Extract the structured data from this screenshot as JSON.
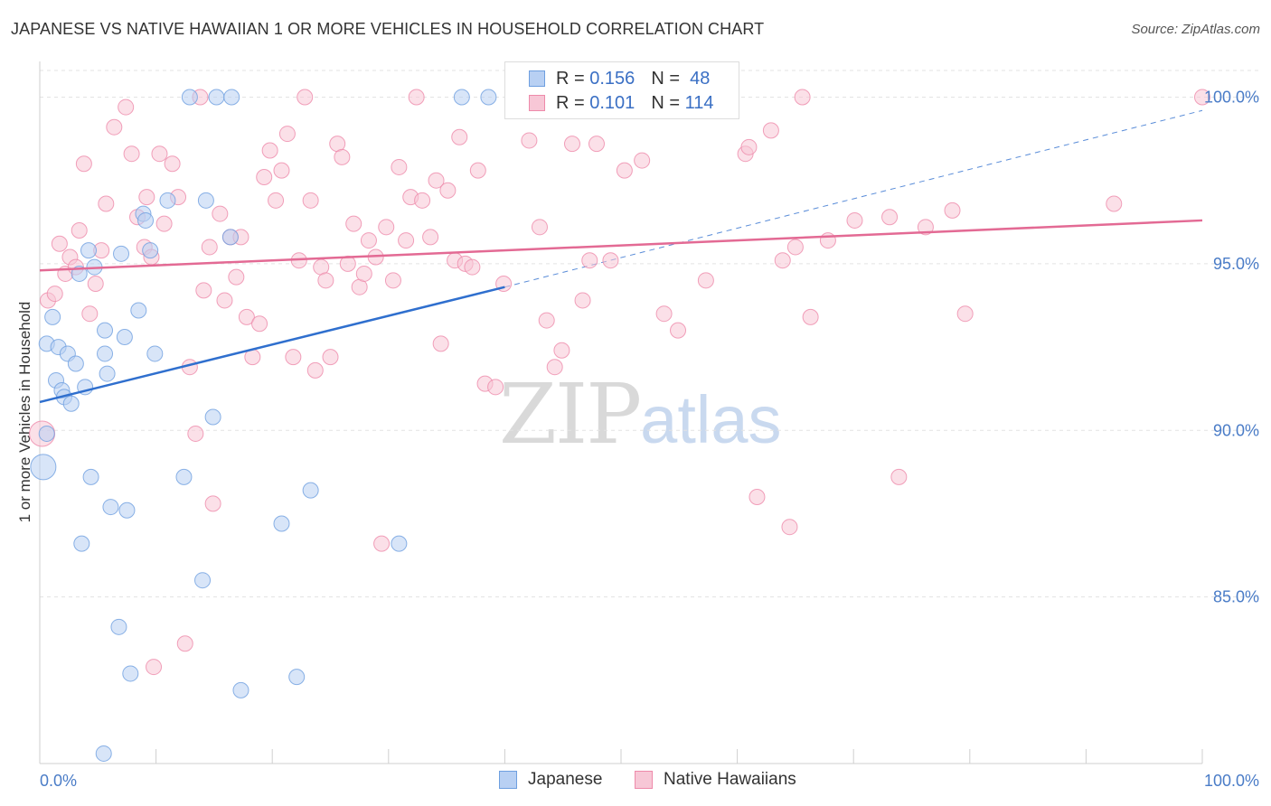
{
  "title": "JAPANESE VS NATIVE HAWAIIAN 1 OR MORE VEHICLES IN HOUSEHOLD CORRELATION CHART",
  "source": "Source: ZipAtlas.com",
  "watermark": {
    "zip": "ZIP",
    "atlas": "atlas"
  },
  "colors": {
    "japanese": "#6e9fe0",
    "japanese_fill": "#b8d0f3",
    "hawaiian": "#ee8aaa",
    "hawaiian_fill": "#f7c7d6",
    "tick": "#4a7cc7",
    "japanese_line": "#2f6fce",
    "hawaiian_line": "#e36a94"
  },
  "legend": {
    "japanese": {
      "r_label": "R =",
      "r_value": "0.156",
      "n_label": "N =",
      "n_value": "48"
    },
    "hawaiian": {
      "r_label": "R =",
      "r_value": "0.101",
      "n_label": "N =",
      "n_value": "114"
    }
  },
  "chart_data": {
    "type": "scatter",
    "title": "JAPANESE VS NATIVE HAWAIIAN 1 OR MORE VEHICLES IN HOUSEHOLD CORRELATION CHART",
    "xlabel": "",
    "ylabel": "1 or more Vehicles in Household",
    "xlim": [
      0,
      100
    ],
    "ylim": [
      80,
      100.8
    ],
    "y_ticks": [
      {
        "value": 85,
        "label": "85.0%"
      },
      {
        "value": 90,
        "label": "90.0%"
      },
      {
        "value": 95,
        "label": "95.0%"
      },
      {
        "value": 100,
        "label": "100.0%"
      }
    ],
    "x_ticks": [
      {
        "value": 0,
        "label": "0.0%"
      },
      {
        "value": 100,
        "label": "100.0%"
      }
    ],
    "x_minor_ticks": [
      0,
      10,
      20,
      30,
      40,
      50,
      60,
      70,
      80,
      90,
      100
    ],
    "series": [
      {
        "name": "Japanese",
        "trend": {
          "x0": 0,
          "y0": 90.85,
          "x1": 40,
          "y1": 94.3,
          "dash_x1": 100,
          "dash_y1": 99.6
        },
        "points": [
          [
            0.3,
            88.9,
            2
          ],
          [
            0.6,
            89.9,
            1
          ],
          [
            0.6,
            92.6,
            1
          ],
          [
            1.1,
            93.4,
            1
          ],
          [
            1.4,
            91.5,
            1
          ],
          [
            1.6,
            92.5,
            1
          ],
          [
            1.9,
            91.2,
            1
          ],
          [
            2.1,
            91.0,
            1
          ],
          [
            2.4,
            92.3,
            1
          ],
          [
            2.7,
            90.8,
            1
          ],
          [
            3.1,
            92.0,
            1
          ],
          [
            3.4,
            94.7,
            1
          ],
          [
            3.6,
            86.6,
            1
          ],
          [
            3.9,
            91.3,
            1
          ],
          [
            4.2,
            95.4,
            1
          ],
          [
            4.4,
            88.6,
            1
          ],
          [
            4.7,
            94.9,
            1
          ],
          [
            5.5,
            80.3,
            1
          ],
          [
            5.6,
            92.3,
            1
          ],
          [
            5.6,
            93.0,
            1
          ],
          [
            5.8,
            91.7,
            1
          ],
          [
            6.1,
            87.7,
            1
          ],
          [
            6.8,
            84.1,
            1
          ],
          [
            7.0,
            95.3,
            1
          ],
          [
            7.3,
            92.8,
            1
          ],
          [
            7.5,
            87.6,
            1
          ],
          [
            7.8,
            82.7,
            1
          ],
          [
            8.5,
            93.6,
            1
          ],
          [
            8.9,
            96.5,
            1
          ],
          [
            9.1,
            96.3,
            1
          ],
          [
            9.5,
            95.4,
            1
          ],
          [
            9.9,
            92.3,
            1
          ],
          [
            11.0,
            96.9,
            1
          ],
          [
            12.4,
            88.6,
            1
          ],
          [
            12.9,
            100.0,
            1
          ],
          [
            14.0,
            85.5,
            1
          ],
          [
            14.3,
            96.9,
            1
          ],
          [
            14.9,
            90.4,
            1
          ],
          [
            15.2,
            100.0,
            1
          ],
          [
            16.4,
            95.8,
            1
          ],
          [
            16.5,
            100.0,
            1
          ],
          [
            17.3,
            82.2,
            1
          ],
          [
            20.8,
            87.2,
            1
          ],
          [
            22.1,
            82.6,
            1
          ],
          [
            23.3,
            88.2,
            1
          ],
          [
            30.9,
            86.6,
            1
          ],
          [
            36.3,
            100.0,
            1
          ],
          [
            38.6,
            100.0,
            1
          ]
        ]
      },
      {
        "name": "Native Hawaiians",
        "trend": {
          "x0": 0,
          "y0": 94.8,
          "x1": 100,
          "y1": 96.3
        },
        "points": [
          [
            0.2,
            89.9,
            2
          ],
          [
            0.7,
            93.9,
            1
          ],
          [
            1.3,
            94.1,
            1
          ],
          [
            1.7,
            95.6,
            1
          ],
          [
            2.2,
            94.7,
            1
          ],
          [
            2.6,
            95.2,
            1
          ],
          [
            3.1,
            94.9,
            1
          ],
          [
            3.4,
            96.0,
            1
          ],
          [
            3.8,
            98.0,
            1
          ],
          [
            4.3,
            93.5,
            1
          ],
          [
            4.8,
            94.4,
            1
          ],
          [
            5.3,
            95.4,
            1
          ],
          [
            5.7,
            96.8,
            1
          ],
          [
            6.4,
            99.1,
            1
          ],
          [
            7.4,
            99.7,
            1
          ],
          [
            7.9,
            98.3,
            1
          ],
          [
            8.4,
            96.4,
            1
          ],
          [
            9.0,
            95.5,
            1
          ],
          [
            9.2,
            97.0,
            1
          ],
          [
            9.6,
            95.2,
            1
          ],
          [
            9.8,
            82.9,
            1
          ],
          [
            10.3,
            98.3,
            1
          ],
          [
            10.7,
            96.2,
            1
          ],
          [
            11.4,
            98.0,
            1
          ],
          [
            11.9,
            97.0,
            1
          ],
          [
            12.5,
            83.6,
            1
          ],
          [
            12.9,
            91.9,
            1
          ],
          [
            13.4,
            89.9,
            1
          ],
          [
            13.8,
            100.0,
            1
          ],
          [
            14.1,
            94.2,
            1
          ],
          [
            14.6,
            95.5,
            1
          ],
          [
            14.9,
            87.8,
            1
          ],
          [
            15.5,
            96.5,
            1
          ],
          [
            15.9,
            93.9,
            1
          ],
          [
            16.4,
            95.8,
            1
          ],
          [
            16.9,
            94.6,
            1
          ],
          [
            17.3,
            95.8,
            1
          ],
          [
            17.8,
            93.4,
            1
          ],
          [
            18.3,
            92.2,
            1
          ],
          [
            18.9,
            93.2,
            1
          ],
          [
            19.3,
            97.6,
            1
          ],
          [
            19.8,
            98.4,
            1
          ],
          [
            20.3,
            96.9,
            1
          ],
          [
            20.8,
            97.8,
            1
          ],
          [
            21.3,
            98.9,
            1
          ],
          [
            21.8,
            92.2,
            1
          ],
          [
            22.3,
            95.1,
            1
          ],
          [
            22.8,
            100.0,
            1
          ],
          [
            23.3,
            96.9,
            1
          ],
          [
            23.7,
            91.8,
            1
          ],
          [
            24.2,
            94.9,
            1
          ],
          [
            24.6,
            94.5,
            1
          ],
          [
            25.0,
            92.2,
            1
          ],
          [
            25.6,
            98.6,
            1
          ],
          [
            26.0,
            98.2,
            1
          ],
          [
            26.5,
            95.0,
            1
          ],
          [
            27.0,
            96.2,
            1
          ],
          [
            27.5,
            94.3,
            1
          ],
          [
            27.9,
            94.7,
            1
          ],
          [
            28.3,
            95.7,
            1
          ],
          [
            28.9,
            95.2,
            1
          ],
          [
            29.4,
            86.6,
            1
          ],
          [
            29.8,
            96.1,
            1
          ],
          [
            30.4,
            94.5,
            1
          ],
          [
            30.9,
            97.9,
            1
          ],
          [
            31.5,
            95.7,
            1
          ],
          [
            31.9,
            97.0,
            1
          ],
          [
            32.4,
            100.0,
            1
          ],
          [
            32.9,
            96.9,
            1
          ],
          [
            33.6,
            95.8,
            1
          ],
          [
            34.1,
            97.5,
            1
          ],
          [
            34.5,
            92.6,
            1
          ],
          [
            35.1,
            97.2,
            1
          ],
          [
            35.7,
            95.1,
            1
          ],
          [
            36.1,
            98.8,
            1
          ],
          [
            36.6,
            95.0,
            1
          ],
          [
            37.2,
            94.9,
            1
          ],
          [
            37.7,
            97.8,
            1
          ],
          [
            38.3,
            91.4,
            1
          ],
          [
            39.2,
            91.3,
            1
          ],
          [
            39.9,
            94.4,
            1
          ],
          [
            41.0,
            100.0,
            1
          ],
          [
            42.1,
            98.7,
            1
          ],
          [
            43.0,
            96.1,
            1
          ],
          [
            43.6,
            93.3,
            1
          ],
          [
            44.3,
            91.9,
            1
          ],
          [
            44.9,
            92.4,
            1
          ],
          [
            45.8,
            98.6,
            1
          ],
          [
            46.7,
            93.9,
            1
          ],
          [
            47.3,
            95.1,
            1
          ],
          [
            47.9,
            98.6,
            1
          ],
          [
            49.1,
            95.1,
            1
          ],
          [
            50.3,
            97.8,
            1
          ],
          [
            51.8,
            98.1,
            1
          ],
          [
            53.7,
            93.5,
            1
          ],
          [
            54.9,
            93.0,
            1
          ],
          [
            57.3,
            94.5,
            1
          ],
          [
            59.2,
            100.0,
            1
          ],
          [
            60.7,
            98.3,
            1
          ],
          [
            61.0,
            98.5,
            1
          ],
          [
            61.7,
            88.0,
            1
          ],
          [
            62.9,
            99.0,
            1
          ],
          [
            63.9,
            95.1,
            1
          ],
          [
            64.5,
            87.1,
            1
          ],
          [
            65.0,
            95.5,
            1
          ],
          [
            65.6,
            100.0,
            1
          ],
          [
            66.3,
            93.4,
            1
          ],
          [
            67.8,
            95.7,
            1
          ],
          [
            70.1,
            96.3,
            1
          ],
          [
            73.1,
            96.4,
            1
          ],
          [
            73.9,
            88.6,
            1
          ],
          [
            76.2,
            96.1,
            1
          ],
          [
            78.5,
            96.6,
            1
          ],
          [
            79.6,
            93.5,
            1
          ],
          [
            92.4,
            96.8,
            1
          ],
          [
            100.0,
            100.0,
            1
          ]
        ]
      }
    ],
    "legend_position": "top-center"
  },
  "bottom_legend": {
    "japanese": "Japanese",
    "hawaiian": "Native Hawaiians"
  }
}
